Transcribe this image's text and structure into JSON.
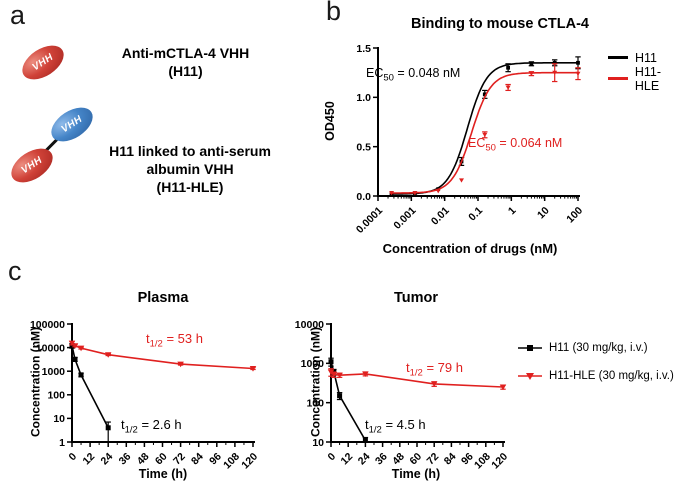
{
  "panels": {
    "a": {
      "letter": "a"
    },
    "b": {
      "letter": "b"
    },
    "c": {
      "letter": "c"
    }
  },
  "panel_a": {
    "vhh_label": "VHH",
    "colors": {
      "red_vhh": "#d04238",
      "blue_vhh": "#4585c8"
    },
    "construct1": {
      "lines": [
        "Anti-mCTLA-4 VHH",
        "(H11)"
      ]
    },
    "construct2": {
      "lines": [
        "H11 linked to anti-serum",
        "albumin VHH",
        "(H11-HLE)"
      ]
    }
  },
  "chart_data": [
    {
      "id": "binding",
      "type": "line",
      "title": "Binding to mouse CTLA-4",
      "xlabel": "Concentration of drugs (nM)",
      "ylabel": "OD450",
      "xscale": "log",
      "yscale": "linear",
      "xlim": [
        0.0001,
        100
      ],
      "ylim": [
        0,
        1.5
      ],
      "xticks": [
        0.0001,
        0.001,
        0.01,
        0.1,
        1,
        10,
        100
      ],
      "xtick_labels": [
        "0.0001",
        "0.001",
        "0.01",
        "0.1",
        "1",
        "10",
        "100"
      ],
      "yticks": [
        0,
        0.5,
        1,
        1.5
      ],
      "ytick_labels": [
        "0.0",
        "0.5",
        "1.0",
        "1.5"
      ],
      "grid": false,
      "legend_position": "right",
      "legend": [
        {
          "label": "H11",
          "color": "#000000"
        },
        {
          "label": "H11-HLE",
          "color": "#e0201f"
        }
      ],
      "annotations": [
        {
          "pre": "EC",
          "sub": "50",
          "post": " = 0.048 nM",
          "color": "#000000"
        },
        {
          "pre": "EC",
          "sub": "50",
          "post": " = 0.064 nM",
          "color": "#e0201f"
        }
      ],
      "series": [
        {
          "name": "H11",
          "color": "#000000",
          "marker": "square",
          "fit": {
            "bottom": 0.02,
            "top": 1.35,
            "ec50": 0.048,
            "hill": 1.5
          },
          "x": [
            0.000256,
            0.00128,
            0.0064,
            0.032,
            0.16,
            0.8,
            4,
            20,
            100
          ],
          "y": [
            0.03,
            0.03,
            0.07,
            0.35,
            1.03,
            1.3,
            1.34,
            1.35,
            1.35
          ],
          "err": [
            0,
            0,
            0,
            0.04,
            0.04,
            0.04,
            0.02,
            0.03,
            0.06
          ]
        },
        {
          "name": "H11-HLE",
          "color": "#e0201f",
          "marker": "triangle-down",
          "fit": {
            "bottom": 0.03,
            "top": 1.25,
            "ec50": 0.064,
            "hill": 1.5
          },
          "x": [
            0.000256,
            0.00128,
            0.0064,
            0.032,
            0.16,
            0.8,
            4,
            20,
            100
          ],
          "y": [
            0.03,
            0.03,
            0.05,
            0.16,
            0.62,
            1.1,
            1.24,
            1.25,
            1.24
          ],
          "err": [
            0,
            0,
            0,
            0,
            0.03,
            0.03,
            0.02,
            0.09,
            0.06
          ]
        }
      ]
    },
    {
      "id": "plasma",
      "type": "line",
      "title": "Plasma",
      "xlabel": "Time (h)",
      "ylabel": "Concentration (nM)",
      "xscale": "linear",
      "yscale": "log",
      "xlim": [
        0,
        120
      ],
      "ylim": [
        1,
        100000
      ],
      "xminor": 6,
      "xticks": [
        0,
        12,
        24,
        36,
        48,
        60,
        72,
        84,
        96,
        108,
        120
      ],
      "xtick_labels": [
        "0",
        "12",
        "24",
        "36",
        "48",
        "60",
        "72",
        "84",
        "96",
        "108",
        "120"
      ],
      "yticks": [
        1,
        10,
        100,
        1000,
        10000,
        100000
      ],
      "ytick_labels": [
        "1",
        "10",
        "100",
        "1000",
        "10000",
        "100000"
      ],
      "grid": false,
      "annotations": [
        {
          "pre": "t",
          "sub": "1/2",
          "post": " = 53 h",
          "color": "#e0201f"
        },
        {
          "pre": "t",
          "sub": "1/2",
          "post": " = 2.6 h",
          "color": "#000000"
        }
      ],
      "series": [
        {
          "name": "H11",
          "color": "#000000",
          "marker": "square",
          "x": [
            0,
            2,
            6,
            24
          ],
          "y": [
            12000,
            3200,
            700,
            4
          ],
          "err": [
            2500,
            600,
            120,
            3
          ]
        },
        {
          "name": "H11-HLE",
          "color": "#e0201f",
          "marker": "triangle-down",
          "x": [
            0,
            2,
            6,
            24,
            72,
            120
          ],
          "y": [
            15500,
            12000,
            9500,
            5000,
            2000,
            1300
          ],
          "err": [
            2500,
            1200,
            800,
            400,
            180,
            120
          ]
        }
      ]
    },
    {
      "id": "tumor",
      "type": "line",
      "title": "Tumor",
      "xlabel": "Time (h)",
      "ylabel": "Concentration (nM)",
      "xscale": "linear",
      "yscale": "log",
      "xlim": [
        0,
        120
      ],
      "ylim": [
        10,
        10000
      ],
      "xminor": 6,
      "xticks": [
        0,
        12,
        24,
        36,
        48,
        60,
        72,
        84,
        96,
        108,
        120
      ],
      "xtick_labels": [
        "0",
        "12",
        "24",
        "36",
        "48",
        "60",
        "72",
        "84",
        "96",
        "108",
        "120"
      ],
      "yticks": [
        10,
        100,
        1000,
        10000
      ],
      "ytick_labels": [
        "10",
        "100",
        "1000",
        "10000"
      ],
      "grid": false,
      "annotations": [
        {
          "pre": "t",
          "sub": "1/2",
          "post": " = 79 h",
          "color": "#e0201f"
        },
        {
          "pre": "t",
          "sub": "1/2",
          "post": " = 4.5 h",
          "color": "#000000"
        }
      ],
      "series": [
        {
          "name": "H11",
          "color": "#000000",
          "marker": "square",
          "x": [
            0,
            2,
            6,
            24
          ],
          "y": [
            1100,
            600,
            150,
            11
          ],
          "err": [
            250,
            100,
            30,
            2
          ]
        },
        {
          "name": "H11-HLE",
          "color": "#e0201f",
          "marker": "triangle-down",
          "x": [
            0,
            2,
            6,
            24,
            72,
            120
          ],
          "y": [
            600,
            520,
            500,
            540,
            300,
            250
          ],
          "err": [
            130,
            80,
            60,
            60,
            40,
            30
          ]
        }
      ]
    }
  ],
  "pk_legend": [
    {
      "label": "H11 (30 mg/kg, i.v.)",
      "marker": "square",
      "color": "#000000"
    },
    {
      "label": "H11-HLE (30 mg/kg, i.v.)",
      "marker": "triangle-down",
      "color": "#e0201f"
    }
  ]
}
